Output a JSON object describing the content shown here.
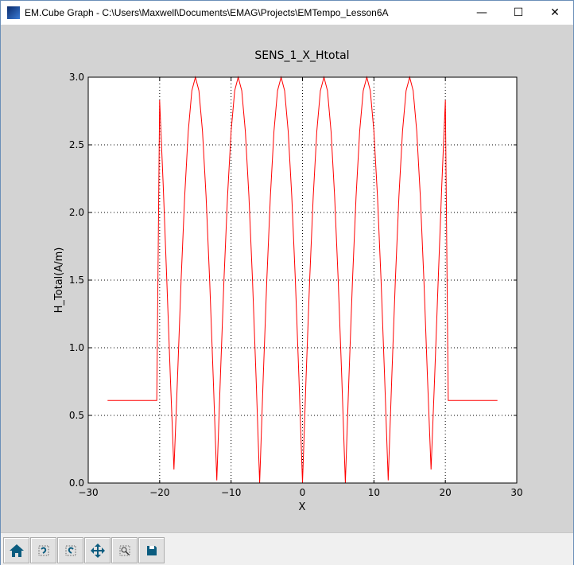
{
  "window": {
    "title": "EM.Cube Graph - C:\\Users\\Maxwell\\Documents\\EMAG\\Projects\\EMTempo_Lesson6A",
    "minimize": "—",
    "maximize": "☐",
    "close": "✕"
  },
  "toolbar": [
    {
      "name": "home-button",
      "icon": "home-icon"
    },
    {
      "name": "back-button",
      "icon": "back-icon"
    },
    {
      "name": "forward-button",
      "icon": "forward-icon"
    },
    {
      "name": "pan-button",
      "icon": "move-icon"
    },
    {
      "name": "zoom-button",
      "icon": "zoom-rect-icon"
    },
    {
      "name": "save-button",
      "icon": "save-icon"
    }
  ],
  "chart_data": {
    "type": "line",
    "title": "SENS_1_X_Htotal",
    "xlabel": "X",
    "ylabel": "H_Total(A/m)",
    "xlim": [
      -30,
      30
    ],
    "ylim": [
      0,
      3.0
    ],
    "xticks": [
      "−30",
      "−20",
      "−10",
      "0",
      "10",
      "20",
      "30"
    ],
    "yticks": [
      "0.0",
      "0.5",
      "1.0",
      "1.5",
      "2.0",
      "2.5",
      "3.0"
    ],
    "grid": true,
    "color": "#ff0000",
    "x": [
      -27.3,
      -20.4,
      -20,
      -19.5,
      -19,
      -18.5,
      -18,
      -17.5,
      -17,
      -16.5,
      -16,
      -15.5,
      -15,
      -14.5,
      -14,
      -13.5,
      -13,
      -12.5,
      -12,
      -11.5,
      -11,
      -10.5,
      -10,
      -9.5,
      -9,
      -8.5,
      -8,
      -7.5,
      -7,
      -6.5,
      -6,
      -5.5,
      -5,
      -4.5,
      -4,
      -3.5,
      -3,
      -2.5,
      -2,
      -1.5,
      -1,
      -0.5,
      0,
      0.5,
      1,
      1.5,
      2,
      2.5,
      3,
      3.5,
      4,
      4.5,
      5,
      5.5,
      6,
      6.5,
      7,
      7.5,
      8,
      8.5,
      9,
      9.5,
      10,
      10.5,
      11,
      11.5,
      12,
      12.5,
      13,
      13.5,
      14,
      14.5,
      15,
      15.5,
      16,
      16.5,
      17,
      17.5,
      18,
      18.5,
      19,
      19.5,
      20,
      20.4,
      27.3
    ],
    "y": [
      0.61,
      0.61,
      2.83,
      2.2,
      1.5,
      0.78,
      0.1,
      0.78,
      1.5,
      2.12,
      2.6,
      2.9,
      3.0,
      2.9,
      2.6,
      2.12,
      1.5,
      0.78,
      0.02,
      0.78,
      1.5,
      2.12,
      2.6,
      2.9,
      3.0,
      2.9,
      2.6,
      2.12,
      1.5,
      0.78,
      0,
      0.78,
      1.5,
      2.12,
      2.6,
      2.9,
      3.0,
      2.9,
      2.6,
      2.12,
      1.5,
      0.78,
      0,
      0.78,
      1.5,
      2.12,
      2.6,
      2.9,
      3.0,
      2.9,
      2.6,
      2.12,
      1.5,
      0.78,
      0,
      0.78,
      1.5,
      2.12,
      2.6,
      2.9,
      3.0,
      2.9,
      2.6,
      2.12,
      1.5,
      0.78,
      0.02,
      0.78,
      1.5,
      2.12,
      2.6,
      2.9,
      3.0,
      2.9,
      2.6,
      2.12,
      1.5,
      0.78,
      0.1,
      0.78,
      1.5,
      2.2,
      2.83,
      0.61,
      0.61
    ]
  }
}
